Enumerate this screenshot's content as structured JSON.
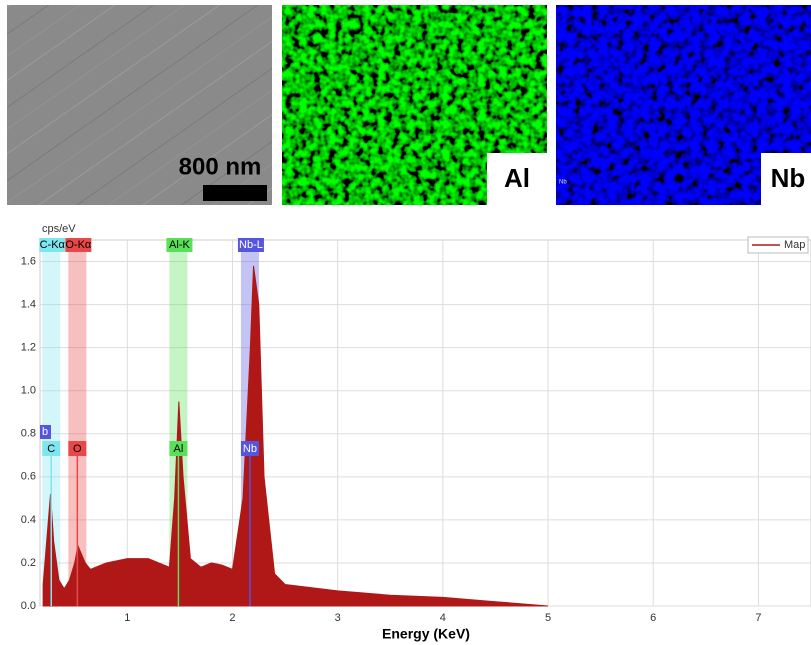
{
  "figure_labels": {
    "scale_bar": "800 nm",
    "al_map": "Al",
    "nb_map": "Nb",
    "nb_small": "Nb"
  },
  "chart_data": {
    "type": "area",
    "y_label": "cps/eV",
    "x_label": "Energy (KeV)",
    "xlim": [
      0.17,
      7.5
    ],
    "ylim": [
      0,
      1.7
    ],
    "xticks": [
      1,
      2,
      3,
      4,
      5,
      6,
      7
    ],
    "yticks": [
      {
        "value": 0,
        "label": "0.0"
      },
      0.2,
      0.4,
      0.6,
      0.8,
      {
        "value": 1,
        "label": "1.0"
      },
      1.2,
      1.4,
      1.6
    ],
    "grid": true,
    "legend": "top-right",
    "series": [
      {
        "name": "Map",
        "color": "#b01818",
        "x": [
          0.2,
          0.25,
          0.27,
          0.3,
          0.35,
          0.4,
          0.45,
          0.5,
          0.53,
          0.6,
          0.65,
          0.8,
          1.0,
          1.2,
          1.3,
          1.4,
          1.45,
          1.49,
          1.53,
          1.6,
          1.7,
          1.8,
          1.9,
          2.0,
          2.1,
          2.17,
          2.2,
          2.25,
          2.3,
          2.4,
          2.5,
          3.0,
          3.5,
          4.0,
          4.5,
          5.0
        ],
        "values": [
          0.1,
          0.4,
          0.52,
          0.3,
          0.12,
          0.08,
          0.12,
          0.2,
          0.28,
          0.2,
          0.17,
          0.2,
          0.22,
          0.22,
          0.2,
          0.18,
          0.5,
          0.95,
          0.6,
          0.22,
          0.18,
          0.2,
          0.19,
          0.17,
          0.5,
          1.2,
          1.58,
          1.4,
          0.6,
          0.15,
          0.1,
          0.07,
          0.05,
          0.04,
          0.02,
          0
        ]
      }
    ],
    "peaks": [
      {
        "label": "C-Kα",
        "marker": "C",
        "x": 0.277,
        "color": "#7fe6f0"
      },
      {
        "label": "O-Kα",
        "marker": "O",
        "x": 0.525,
        "color": "#e84848"
      },
      {
        "label": "Al-K",
        "marker": "Al",
        "x": 1.486,
        "color": "#58e058"
      },
      {
        "label": "Nb-L",
        "marker": "Nb",
        "x": 2.166,
        "color": "#5555e0"
      }
    ],
    "cut_label": "b"
  }
}
